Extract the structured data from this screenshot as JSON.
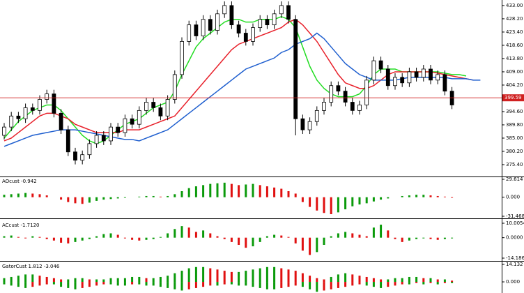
{
  "chart_data": [
    {
      "type": "candlestick",
      "open": [
        386,
        389,
        393,
        392,
        396,
        395,
        399,
        401,
        394,
        388,
        380,
        377,
        379,
        383,
        386,
        384,
        389,
        387,
        392,
        390,
        395,
        398,
        396,
        393,
        399,
        408,
        420,
        426,
        422,
        428,
        424,
        430,
        433,
        426,
        423,
        420,
        425,
        428,
        426,
        430,
        433,
        428,
        392,
        388,
        391,
        395,
        398,
        404,
        402,
        398,
        395,
        397,
        406,
        413,
        410,
        404,
        407,
        405,
        409,
        407,
        410,
        406,
        408,
        402,
        null,
        null,
        null,
        null
      ],
      "high": [
        390.5,
        394.5,
        394.5,
        397.5,
        397.5,
        400.5,
        402.5,
        402.5,
        395.5,
        389.5,
        381.5,
        380.5,
        384.5,
        387.5,
        387.5,
        390.5,
        390.5,
        393.5,
        393.5,
        396.5,
        399.5,
        399.5,
        397.5,
        400.5,
        409.5,
        421.5,
        427.5,
        427.5,
        429.5,
        429.5,
        431.5,
        434.5,
        434.5,
        427.5,
        424.5,
        426.5,
        429.5,
        429.5,
        431.5,
        434.5,
        434.5,
        429.5,
        393.5,
        392.5,
        396.5,
        399.5,
        405.5,
        405.5,
        403.5,
        399.5,
        398.5,
        407.5,
        414.5,
        414.5,
        411.5,
        408.5,
        408.5,
        410.5,
        410.5,
        411.5,
        411.5,
        409.5,
        409.5,
        403.5,
        null,
        null,
        null,
        null
      ],
      "low": [
        384.5,
        387.5,
        390.5,
        390.5,
        393.5,
        393.5,
        397.5,
        392.5,
        386.5,
        378.5,
        375.5,
        375.5,
        377.5,
        381.5,
        382.5,
        382.5,
        385.5,
        385.5,
        388.5,
        388.5,
        393.5,
        394.5,
        391.5,
        391.5,
        397.5,
        406.5,
        418.5,
        420.5,
        420.5,
        422.5,
        422.5,
        428.5,
        424.5,
        421.5,
        418.5,
        418.5,
        423.5,
        424.5,
        424.5,
        428.5,
        426.5,
        386,
        386.5,
        386.5,
        389.5,
        393.5,
        396.5,
        400.5,
        396.5,
        393.5,
        393.5,
        395.5,
        404.5,
        408.5,
        402.5,
        402.5,
        403.5,
        403.5,
        405.5,
        405.5,
        404.5,
        404.5,
        400.5,
        395.5,
        null,
        null,
        null,
        null
      ],
      "close": [
        389,
        393,
        392,
        396,
        395,
        399,
        401,
        394,
        388,
        380,
        377,
        379,
        383,
        386,
        384,
        389,
        387,
        392,
        390,
        395,
        398,
        396,
        393,
        399,
        408,
        420,
        426,
        422,
        428,
        424,
        430,
        433,
        426,
        423,
        420,
        425,
        428,
        426,
        430,
        433,
        428,
        392,
        388,
        391,
        395,
        398,
        404,
        402,
        398,
        395,
        397,
        406,
        413,
        410,
        404,
        407,
        405,
        409,
        407,
        410,
        406,
        408,
        402,
        397,
        null,
        null,
        null,
        null
      ],
      "series": [
        {
          "color": "#22dd22",
          "values": [
            385,
            388,
            391,
            393,
            395,
            396,
            397,
            397,
            395,
            392,
            389,
            386,
            384,
            383,
            384,
            386,
            388,
            390,
            391,
            392,
            394,
            396,
            397,
            398,
            402,
            408,
            413,
            418,
            421,
            423,
            425,
            427,
            428,
            428,
            427,
            427,
            428,
            428,
            428,
            429,
            428,
            425,
            418,
            411,
            406,
            403,
            401,
            400,
            400,
            400,
            401,
            404,
            408,
            410,
            410,
            410,
            409,
            409,
            409,
            409,
            409,
            409,
            408.5,
            408,
            408,
            407.5,
            null,
            null
          ]
        },
        {
          "color": "#e8202a",
          "values": [
            384,
            385,
            387,
            389,
            391,
            393,
            394,
            394,
            393,
            392,
            390,
            389,
            388,
            387,
            387,
            387,
            387,
            388,
            388,
            388,
            389,
            390,
            391,
            392,
            393,
            396,
            399,
            402,
            405,
            408,
            411,
            414,
            417,
            419,
            420,
            421,
            422,
            423,
            424,
            425,
            427,
            428,
            426,
            423,
            420,
            416,
            412,
            408,
            405,
            404,
            403,
            403,
            404,
            406,
            408,
            409,
            409,
            409,
            409,
            409,
            409,
            408.5,
            408,
            407.5,
            407,
            406.5,
            406,
            null
          ]
        },
        {
          "color": "#1f5fcf",
          "values": [
            382,
            383,
            384,
            385,
            386,
            386.5,
            387,
            387.5,
            388,
            388,
            388,
            387.5,
            387,
            386.5,
            386,
            385.5,
            385,
            384.5,
            384.5,
            384,
            385,
            386,
            387,
            388,
            390,
            392,
            394,
            396,
            398,
            400,
            402,
            404,
            406,
            408,
            410,
            411,
            412,
            413,
            414,
            416,
            417,
            419,
            420,
            421,
            423,
            421,
            418,
            415,
            412,
            410,
            408,
            407,
            406,
            406,
            406,
            406,
            406.5,
            407,
            407,
            407,
            407,
            407,
            407,
            406.5,
            406.5,
            406.5,
            406,
            406
          ]
        }
      ],
      "ylim": [
        371.1,
        435.0
      ],
      "yticks": [
        {
          "value": 433.0,
          "label": "433.00"
        },
        {
          "value": 428.2,
          "label": "428.20"
        },
        {
          "value": 423.4,
          "label": "423.40"
        },
        {
          "value": 418.6,
          "label": "418.60"
        },
        {
          "value": 413.8,
          "label": "413.80"
        },
        {
          "value": 409.0,
          "label": "409.00"
        },
        {
          "value": 404.2,
          "label": "404.20"
        },
        {
          "value": 394.6,
          "label": "394.60"
        },
        {
          "value": 389.8,
          "label": "389.80"
        },
        {
          "value": 385.0,
          "label": "385.00"
        },
        {
          "value": 380.2,
          "label": "380.20"
        },
        {
          "value": 375.4,
          "label": "375.40"
        }
      ],
      "current_price": {
        "value": 399.59,
        "label": "399.59"
      },
      "up_color": "#ffffff",
      "down_color": "#000000"
    },
    {
      "type": "bar",
      "title": "AOcust -0.942",
      "values": [
        4,
        5,
        6,
        7,
        6,
        5,
        3,
        0,
        -4,
        -8,
        -10,
        -11,
        -9,
        -6,
        -4,
        -3,
        -2,
        -1,
        0,
        1,
        2,
        2,
        1,
        2,
        5,
        10,
        15,
        18,
        20,
        22,
        23,
        24,
        22,
        20,
        21,
        22,
        20,
        18,
        16,
        14,
        10,
        6,
        -8,
        -16,
        -22,
        -26,
        -28,
        -25,
        -20,
        -15,
        -12,
        -10,
        -7,
        -4,
        -2,
        0,
        2,
        3,
        4,
        4,
        3,
        2,
        1,
        -1
      ],
      "ylim": [
        -31.468,
        29.614
      ],
      "yticks": [
        {
          "value": 29.614,
          "label": "29.614"
        },
        {
          "value": 0,
          "label": "0.000"
        },
        {
          "value": -31.468,
          "label": "-31.468"
        }
      ],
      "up_color": "#0a9a0a",
      "down_color": "#e01010"
    },
    {
      "type": "bar",
      "title": "ACcust -1.7120",
      "values": [
        1,
        1.5,
        0.5,
        -0.5,
        1,
        0.5,
        -1,
        -2,
        -3.5,
        -4,
        -3,
        -2,
        -1,
        1,
        2.5,
        3,
        2,
        -0.5,
        -1.5,
        -2,
        -1.5,
        -1,
        0.5,
        3,
        6,
        8,
        7,
        4,
        5,
        3,
        1,
        -1,
        -3,
        -5,
        -7,
        -6,
        -3,
        1,
        2,
        1.5,
        0.5,
        -4,
        -9,
        -12,
        -10,
        -5,
        1,
        3,
        4,
        3,
        2,
        1,
        7,
        9,
        5,
        -1,
        -3,
        -2,
        -1,
        -0.5,
        -1,
        -1.5,
        -1,
        -0.5
      ],
      "ylim": [
        -14.186,
        10.0054
      ],
      "yticks": [
        {
          "value": 10.0054,
          "label": "10.0054"
        },
        {
          "value": 0,
          "label": "0.0000"
        },
        {
          "value": -14.186,
          "label": "-14.1860"
        }
      ],
      "up_color": "#0a9a0a",
      "down_color": "#e01010"
    },
    {
      "type": "gator",
      "title": "GatorCust 1.812 -3.046",
      "series": [
        {
          "values": [
            3,
            4,
            5,
            6,
            6,
            5,
            4,
            3,
            2,
            2,
            3,
            3,
            2,
            2,
            2,
            3,
            3,
            3,
            4,
            4,
            3,
            3,
            4,
            5,
            7,
            9,
            11,
            12,
            12,
            11,
            10,
            9,
            8,
            8,
            9,
            10,
            11,
            12,
            12,
            11,
            10,
            9,
            7,
            5,
            3,
            2,
            4,
            6,
            7,
            6,
            5,
            4,
            3,
            2,
            2,
            3,
            3,
            4,
            4,
            3,
            3,
            2,
            2,
            1
          ]
        },
        {
          "values": [
            -2,
            -3,
            -4,
            -5,
            -4,
            -3,
            -2,
            -2,
            -4,
            -5,
            -6,
            -5,
            -4,
            -3,
            -2,
            -2,
            -3,
            -3,
            -2,
            -2,
            -3,
            -3,
            -4,
            -5,
            -6,
            -7,
            -6,
            -5,
            -4,
            -3,
            -3,
            -2,
            -2,
            -3,
            -3,
            -4,
            -5,
            -6,
            -6,
            -5,
            -4,
            -3,
            -4,
            -6,
            -8,
            -7,
            -6,
            -5,
            -4,
            -3,
            -2,
            -3,
            -4,
            -5,
            -4,
            -3,
            -2,
            -2,
            -1,
            -2,
            -1,
            -2,
            -1,
            -1
          ]
        }
      ],
      "ylim": [
        -9.0,
        14.132
      ],
      "yticks": [
        {
          "value": 14.132,
          "label": "14.132"
        },
        {
          "value": 0,
          "label": "0.000"
        }
      ],
      "up_color": "#0a9a0a",
      "down_color": "#e01010"
    }
  ]
}
